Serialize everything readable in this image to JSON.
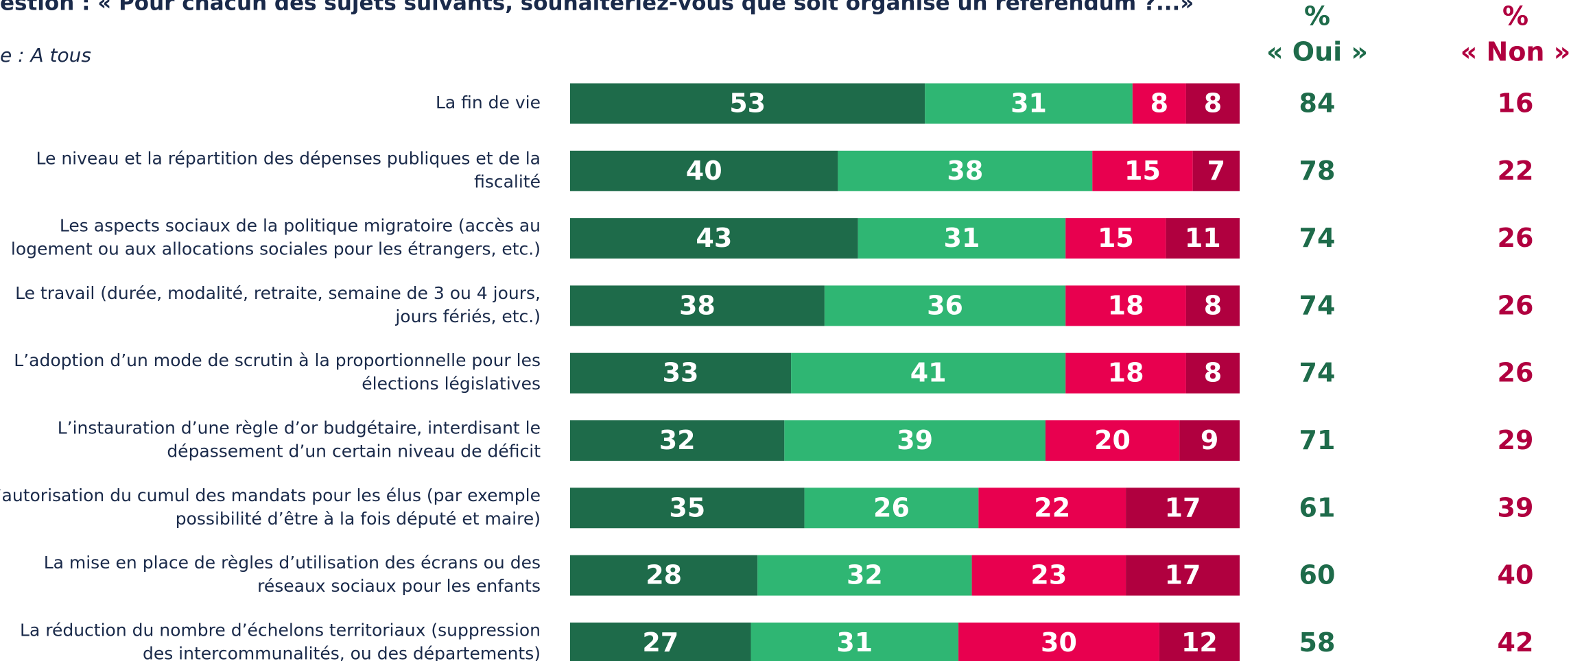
{
  "chart_data": {
    "type": "stacked-bar",
    "orientation": "horizontal",
    "title": "estion : « Pour chacun des sujets suivants, souhaiteriez-vous que soit organisé un référendum ?...»",
    "subtitle": "e : A tous",
    "categories": [
      [
        "La fin de vie"
      ],
      [
        "Le niveau et la répartition des dépenses publiques et de la",
        "fiscalité"
      ],
      [
        "Les aspects sociaux de la politique migratoire (accès au",
        "logement ou aux allocations sociales pour les étrangers, etc.)"
      ],
      [
        "Le travail (durée, modalité, retraite, semaine de 3 ou 4 jours,",
        "jours fériés, etc.)"
      ],
      [
        "L’adoption d’un mode de scrutin à la proportionnelle pour les",
        "élections législatives"
      ],
      [
        "L’instauration d’une règle d’or budgétaire, interdisant le",
        "dépassement d’un certain niveau de déficit"
      ],
      [
        "L’autorisation du cumul des mandats pour les élus (par exemple",
        "possibilité d’être à la fois député et maire)"
      ],
      [
        "La mise en place de règles d’utilisation des écrans ou des",
        "réseaux sociaux pour les enfants"
      ],
      [
        "La réduction du nombre d’échelons territoriaux (suppression",
        "des intercommunalités, ou des départements)"
      ]
    ],
    "series": [
      {
        "color": "#1e6b4a",
        "values": [
          53,
          40,
          43,
          38,
          33,
          32,
          35,
          28,
          27
        ]
      },
      {
        "color": "#2fb673",
        "values": [
          31,
          38,
          31,
          36,
          41,
          39,
          26,
          32,
          31
        ]
      },
      {
        "color": "#e8004f",
        "values": [
          8,
          15,
          15,
          18,
          18,
          20,
          22,
          23,
          30
        ]
      },
      {
        "color": "#b0003f",
        "values": [
          8,
          7,
          11,
          8,
          8,
          9,
          17,
          17,
          12
        ]
      }
    ],
    "xlim": [
      0,
      100
    ],
    "columns": [
      {
        "header": [
          "%",
          "« Oui »"
        ],
        "color": "#1e6b4a",
        "values": [
          84,
          78,
          74,
          74,
          74,
          71,
          61,
          60,
          58
        ]
      },
      {
        "header": [
          "%",
          "« Non »"
        ],
        "color": "#b0003f",
        "values": [
          16,
          22,
          26,
          26,
          26,
          29,
          39,
          40,
          42
        ]
      }
    ]
  }
}
